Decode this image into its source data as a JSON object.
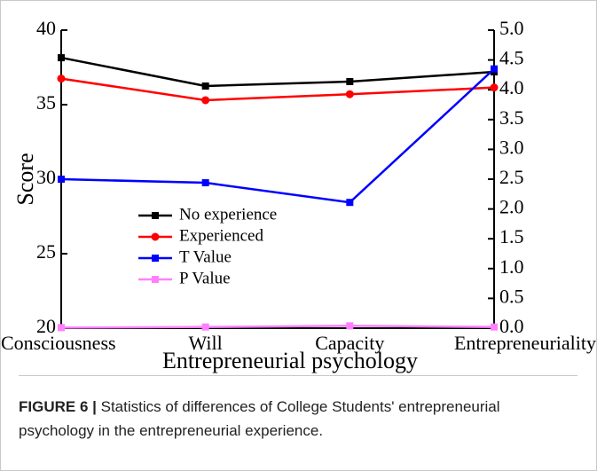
{
  "chart_data": {
    "type": "line",
    "xlabel": "Entrepreneurial psychology",
    "ylabel": "Score",
    "categories": [
      "Consciousness",
      "Will",
      "Capacity",
      "Entrepreneuriality"
    ],
    "series": [
      {
        "name": "No experience",
        "color": "#000000",
        "marker": "square",
        "values": [
          38.15,
          36.25,
          36.55,
          37.2
        ]
      },
      {
        "name": "Experienced",
        "color": "#ff0000",
        "marker": "circle",
        "values": [
          36.75,
          35.3,
          35.7,
          36.15
        ]
      },
      {
        "name": "T Value",
        "color": "#0000ff",
        "marker": "square",
        "axis": "y2",
        "values": [
          2.5,
          2.44,
          2.11,
          4.35
        ]
      },
      {
        "name": "P Value",
        "color": "#ff80ff",
        "marker": "square",
        "axis": "y2",
        "values": [
          0.01,
          0.02,
          0.04,
          0.02
        ]
      }
    ],
    "ylim": [
      20,
      40
    ],
    "yticks": [
      20,
      25,
      30,
      35,
      40
    ],
    "y2lim": [
      0,
      5
    ],
    "y2ticks": [
      {
        "value": 0,
        "label": "0.0"
      },
      0.5,
      {
        "value": 1,
        "label": "1.0"
      },
      1.5,
      {
        "value": 2,
        "label": "2.0"
      },
      2.5,
      {
        "value": 3,
        "label": "3.0"
      },
      3.5,
      {
        "value": 4,
        "label": "4.0"
      },
      4.5,
      {
        "value": 5,
        "label": "5.0"
      }
    ],
    "legend": "left",
    "caption_label": "FIGURE 6 |",
    "caption": "Statistics of differences of College Students' entrepreneurial psychology in the entrepreneurial experience."
  }
}
